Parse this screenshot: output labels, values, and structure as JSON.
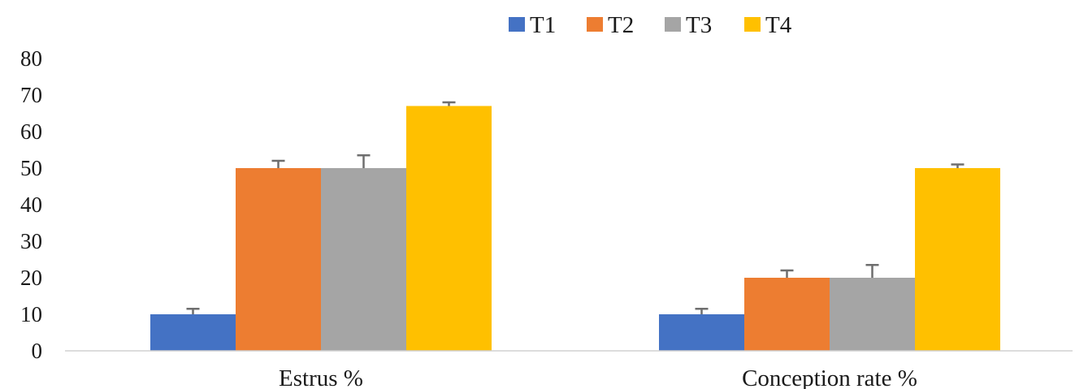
{
  "chart_data": {
    "type": "bar",
    "categories": [
      "Estrus %",
      "Conception rate %"
    ],
    "series": [
      {
        "name": "T1",
        "values": [
          10,
          10
        ],
        "errors": [
          1.5,
          1.5
        ],
        "color": "#4472C4"
      },
      {
        "name": "T2",
        "values": [
          50,
          20
        ],
        "errors": [
          2,
          2
        ],
        "color": "#ED7D31"
      },
      {
        "name": "T3",
        "values": [
          50,
          20
        ],
        "errors": [
          3.5,
          3.5
        ],
        "color": "#A5A5A5"
      },
      {
        "name": "T4",
        "values": [
          67,
          50
        ],
        "errors": [
          1,
          1
        ],
        "color": "#FFC000"
      }
    ],
    "title": "",
    "xlabel": "",
    "ylabel": "",
    "ylim": [
      0,
      80
    ],
    "yticks": [
      "0",
      "10",
      "20",
      "30",
      "40",
      "50",
      "60",
      "70",
      "80"
    ],
    "grid": false,
    "legend_position": "top"
  }
}
